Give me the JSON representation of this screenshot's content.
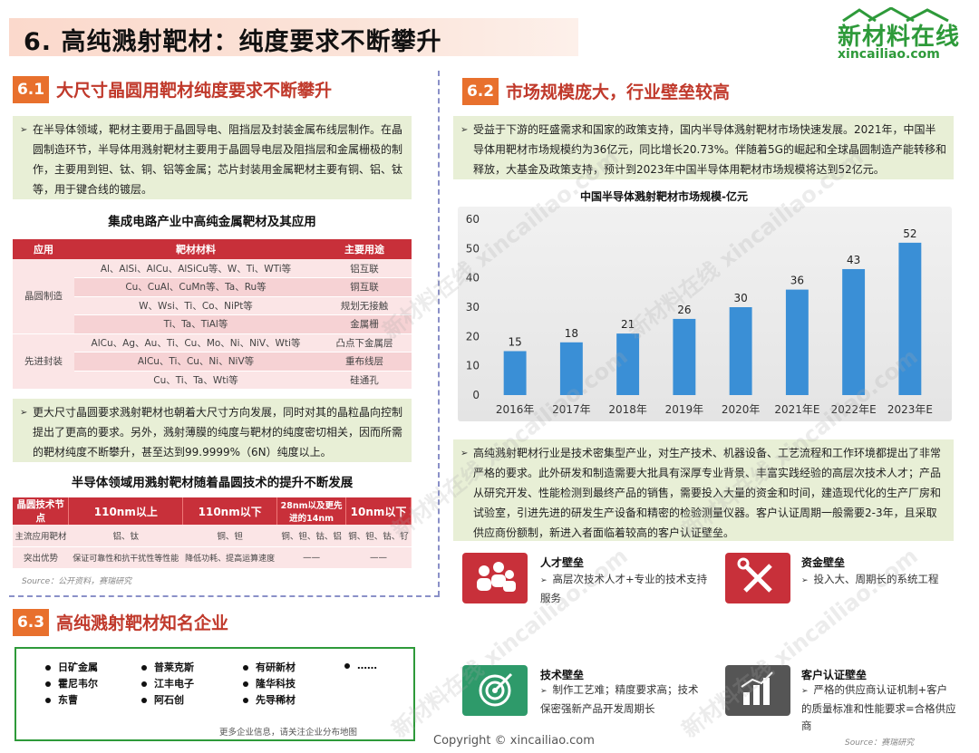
{
  "page_title": "6. 高纯溅射靶材：纯度要求不断攀升",
  "logo": {
    "cn": "新材料在线",
    "en": "xincailiao.com",
    "brand_color": "#2e9a3a"
  },
  "sec61": {
    "num": "6.1",
    "title": "大尺寸晶圆用靶材纯度要求不断攀升",
    "para1": "在半导体领域，靶材主要用于晶圆导电、阻挡层及封装金属布线层制作。在晶圆制造环节，半导体用溅射靶材主要用于晶圆导电层及阻挡层和金属栅极的制作，主要用到钽、钛、铜、铝等金属；芯片封装用金属靶材主要有铜、铝、钛等，用于键合线的镀层。",
    "table1_title": "集成电路产业中高纯金属靶材及其应用",
    "table1_headers": [
      "应用",
      "靶材材料",
      "主要用途"
    ],
    "table1_groups": [
      {
        "app": "晶圆制造",
        "rows": [
          {
            "material": "Al、AlSi、AlCu、AlSiCu等、W、Ti、WTi等",
            "use": "铝互联"
          },
          {
            "material": "Cu、CuAl、CuMn等、Ta、Ru等",
            "use": "铜互联"
          },
          {
            "material": "W、Wsi、Ti、Co、NiPt等",
            "use": "规划无接触"
          },
          {
            "material": "Ti、Ta、TiAl等",
            "use": "金属栅"
          }
        ]
      },
      {
        "app": "先进封装",
        "rows": [
          {
            "material": "AlCu、Ag、Au、Ti、Cu、Mo、Ni、NiV、Wti等",
            "use": "凸点下金属层"
          },
          {
            "material": "AlCu、Ti、Cu、Ni、NiV等",
            "use": "重布线层"
          },
          {
            "material": "Cu、Ti、Ta、Wti等",
            "use": "硅通孔"
          }
        ]
      }
    ],
    "para2": "更大尺寸晶圆要求溅射靶材也朝着大尺寸方向发展，同时对其的晶粒晶向控制提出了更高的要求。另外，溅射薄膜的纯度与靶材的纯度密切相关，因而所需的靶材纯度不断攀升，甚至达到99.9999%（6N）纯度以上。",
    "table2_title": "半导体领域用溅射靶材随着晶圆技术的提升不断发展",
    "table2_headers": [
      "晶圆技术节点",
      "110nm以上",
      "110nm以下",
      "28nm以及更先进的14nm",
      "10nm以下"
    ],
    "table2_rows": [
      [
        "主流应用靶材",
        "铝、钛",
        "铜、钽",
        "铜、钽、钴、铝",
        "铜、钽、钴、钌"
      ],
      [
        "突出优势",
        "保证可靠性和抗干扰性等性能",
        "降低功耗、提高运算速度",
        "——",
        "——"
      ]
    ],
    "source": "Source：公开资料，赛瑞研究"
  },
  "sec62": {
    "num": "6.2",
    "title": "市场规模庞大，行业壁垒较高",
    "para1": "受益于下游的旺盛需求和国家的政策支持，国内半导体溅射靶材市场快速发展。2021年，中国半导体用靶材市场规模约为36亿元，同比增长20.73%。伴随着5G的崛起和全球晶圆制造产能转移和释放，大基金及政策支持，预计到2023年中国半导体用靶材市场规模将达到52亿元。",
    "para2": "高纯溅射靶材行业是技术密集型产业，对生产技术、机器设备、工艺流程和工作环境都提出了非常严格的要求。此外研发和制造需要大批具有深厚专业背景、丰富实践经验的高层次技术人才；产品从研究开发、性能检测到最终产品的销售，需要投入大量的资金和时间，建造现代化的生产厂房和试验室，引进先进的研发生产设备和精密的检验测量仪器。客户认证周期一般需要2-3年，且采取供应商份额制，新进入者面临着较高的客户认证壁垒。",
    "barriers": [
      {
        "title": "人才壁垒",
        "text": "高层次技术人才+专业的技术支持服务",
        "icon": "people-icon",
        "color": "#c8303a"
      },
      {
        "title": "资金壁垒",
        "text": "投入大、周期长的系统工程",
        "icon": "tools-icon",
        "color": "#c8303a"
      },
      {
        "title": "技术壁垒",
        "text": "制作工艺难；精度要求高；技术保密强新产品开发周期长",
        "icon": "target-icon",
        "color": "#2e9a6a"
      },
      {
        "title": "客户认证壁垒",
        "text": "严格的供应商认证机制+客户的质量标准和性能要求=合格供应商",
        "icon": "chart-icon",
        "color": "#555555"
      }
    ],
    "source": "Source：赛瑞研究"
  },
  "chart_data": {
    "type": "bar",
    "title": "中国半导体溅射靶材市场规模-亿元",
    "categories": [
      "2016年",
      "2017年",
      "2018年",
      "2019年",
      "2020年",
      "2021年E",
      "2022年E",
      "2023年E"
    ],
    "values": [
      15,
      18,
      21,
      26,
      30,
      36,
      43,
      52
    ],
    "ylim": [
      0,
      60
    ],
    "yticks": [
      0,
      10,
      20,
      30,
      40,
      50,
      60
    ],
    "bar_color": "#3a8fd6",
    "grid": false
  },
  "sec63": {
    "num": "6.3",
    "title": "高纯溅射靶材知名企业",
    "columns": [
      [
        "日矿金属",
        "霍尼韦尔",
        "东曹"
      ],
      [
        "普莱克斯",
        "江丰电子",
        "阿石创"
      ],
      [
        "有研新材",
        "隆华科技",
        "先导稀材"
      ],
      [
        "……"
      ]
    ],
    "note": "更多企业信息，请关注企业分布地图"
  },
  "footer": {
    "copyright": "Copyright © xincailiao.com"
  },
  "watermark": {
    "text": "新材料在线 xincailiao.com"
  }
}
